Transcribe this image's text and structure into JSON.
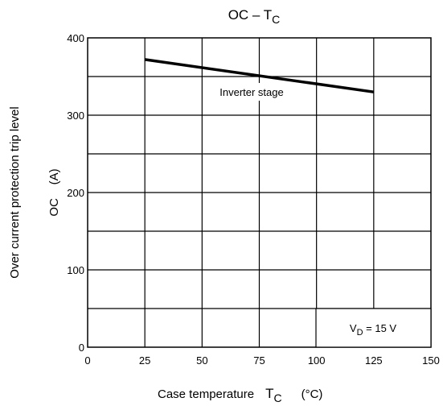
{
  "chart_data": {
    "type": "line",
    "title": {
      "main": "OC – T",
      "sub": "C"
    },
    "xlabel": {
      "text": "Case temperature",
      "symbol": "T",
      "symbol_sub": "C",
      "unit": "(°C)"
    },
    "ylabel": {
      "line1": "Over current protection trip level",
      "line2": "OC    (A)"
    },
    "x_ticks": [
      0,
      25,
      50,
      75,
      100,
      125,
      150
    ],
    "y_ticks": [
      0,
      100,
      200,
      300,
      400
    ],
    "xlim": [
      0,
      150
    ],
    "ylim": [
      0,
      400
    ],
    "grid": true,
    "series": [
      {
        "name": "Inverter stage",
        "x": [
          25,
          125
        ],
        "y": [
          372,
          330
        ]
      }
    ],
    "annotations": {
      "series_label": "Inverter stage",
      "condition": {
        "symbol": "V",
        "sub": "D",
        "text": " = 15 V"
      }
    }
  }
}
